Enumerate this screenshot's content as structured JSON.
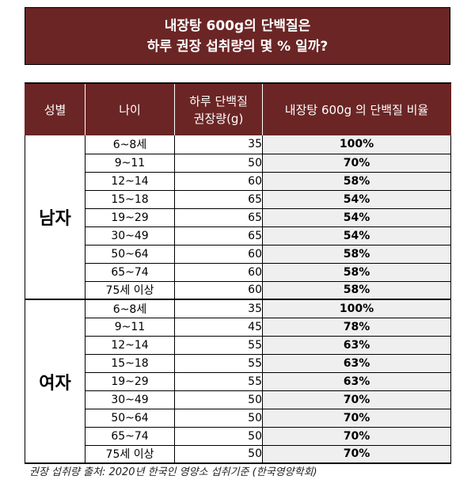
{
  "title": {
    "line1": "내장탕 600g의 단백질은",
    "line2": "하루 권장 섭취량의 몇 % 일까?"
  },
  "table": {
    "headers": {
      "gender": "성별",
      "age": "나이",
      "req_line1": "하루 단백질",
      "req_line2": "권장량(g)",
      "ratio": "내장탕 600g 의 단백질 비율"
    },
    "groups": [
      {
        "gender": "남자",
        "rows": [
          {
            "age": "6~8세",
            "req": "35",
            "ratio": "100%"
          },
          {
            "age": "9~11",
            "req": "50",
            "ratio": "70%"
          },
          {
            "age": "12~14",
            "req": "60",
            "ratio": "58%"
          },
          {
            "age": "15~18",
            "req": "65",
            "ratio": "54%"
          },
          {
            "age": "19~29",
            "req": "65",
            "ratio": "54%"
          },
          {
            "age": "30~49",
            "req": "65",
            "ratio": "54%"
          },
          {
            "age": "50~64",
            "req": "60",
            "ratio": "58%"
          },
          {
            "age": "65~74",
            "req": "60",
            "ratio": "58%"
          },
          {
            "age": "75세 이상",
            "req": "60",
            "ratio": "58%"
          }
        ]
      },
      {
        "gender": "여자",
        "rows": [
          {
            "age": "6~8세",
            "req": "35",
            "ratio": "100%"
          },
          {
            "age": "9~11",
            "req": "45",
            "ratio": "78%"
          },
          {
            "age": "12~14",
            "req": "55",
            "ratio": "63%"
          },
          {
            "age": "15~18",
            "req": "55",
            "ratio": "63%"
          },
          {
            "age": "19~29",
            "req": "55",
            "ratio": "63%"
          },
          {
            "age": "30~49",
            "req": "50",
            "ratio": "70%"
          },
          {
            "age": "50~64",
            "req": "50",
            "ratio": "70%"
          },
          {
            "age": "65~74",
            "req": "50",
            "ratio": "70%"
          },
          {
            "age": "75세 이상",
            "req": "50",
            "ratio": "70%"
          }
        ]
      }
    ]
  },
  "footnote": "권장 섭취량 출처: 2020년 한국인 영양소 섭취기준 (한국영양학회)",
  "colors": {
    "header_bg": "#6b2525",
    "ratio_bg": "#efefef"
  }
}
